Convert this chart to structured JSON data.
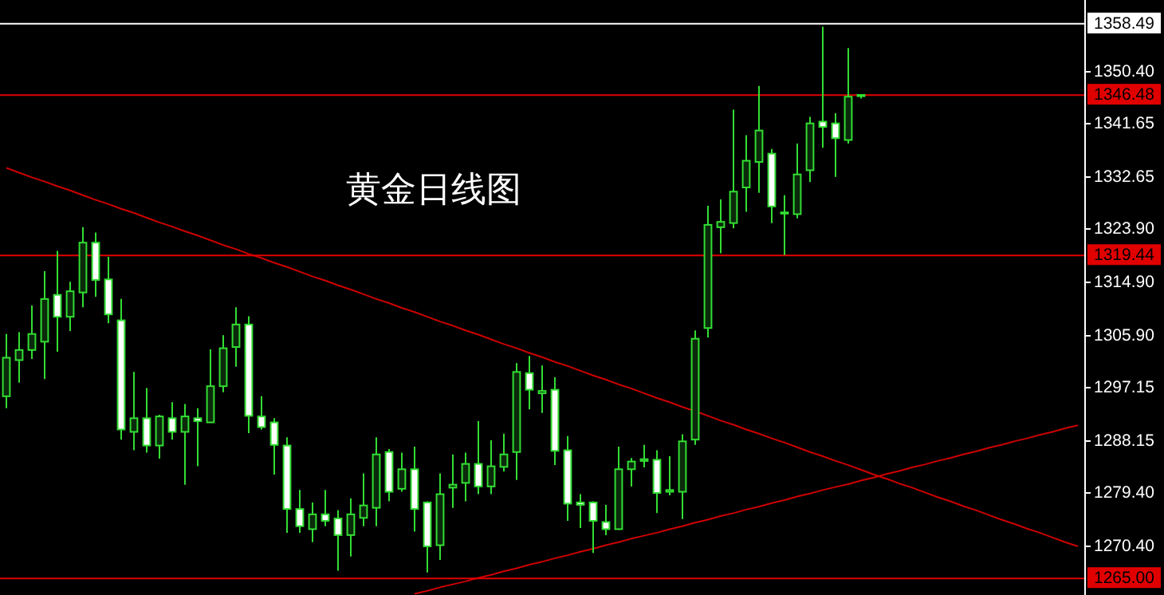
{
  "chart_data": {
    "type": "candlestick",
    "title": "黄金日线图",
    "color": "#33dd33",
    "categories": [
      null,
      null,
      null,
      null,
      null,
      null,
      null,
      null,
      null,
      null,
      null,
      null,
      null,
      null,
      null,
      null,
      null,
      null,
      null,
      null,
      null,
      null,
      null,
      null,
      null,
      null,
      null,
      null,
      null,
      null,
      null,
      null,
      null,
      null,
      null,
      null,
      null,
      null,
      null,
      null,
      null,
      null,
      null,
      null,
      null,
      null,
      null,
      null,
      null,
      null,
      null,
      null,
      null,
      null,
      null,
      null,
      null,
      null,
      null,
      null,
      null,
      null,
      null,
      null,
      null,
      null,
      null,
      null,
      null,
      null,
      null,
      null,
      null,
      null,
      null,
      null,
      null,
      null,
      null,
      null,
      null,
      null,
      null,
      null,
      null
    ],
    "ohlc": [
      [
        1295.7,
        1306.2,
        1293.7,
        1302.2
      ],
      [
        1301.8,
        1306.5,
        1298.0,
        1303.5
      ],
      [
        1303.5,
        1311.0,
        1302.0,
        1306.2
      ],
      [
        1304.9,
        1316.8,
        1298.6,
        1312.1
      ],
      [
        1312.8,
        1320.2,
        1303.2,
        1309.1
      ],
      [
        1309.1,
        1315.0,
        1306.7,
        1313.4
      ],
      [
        1313.2,
        1324.2,
        1310.7,
        1321.6
      ],
      [
        1321.6,
        1323.3,
        1312.5,
        1315.3
      ],
      [
        1315.4,
        1319.2,
        1308.0,
        1309.5
      ],
      [
        1308.5,
        1312.1,
        1288.4,
        1290.1
      ],
      [
        1289.7,
        1299.8,
        1286.6,
        1292.0
      ],
      [
        1292.0,
        1297.1,
        1286.2,
        1287.4
      ],
      [
        1287.4,
        1292.6,
        1285.2,
        1292.3
      ],
      [
        1292.0,
        1294.7,
        1288.4,
        1289.7
      ],
      [
        1289.7,
        1294.4,
        1280.8,
        1292.3
      ],
      [
        1292.0,
        1293.7,
        1283.9,
        1291.5
      ],
      [
        1291.3,
        1303.6,
        1291.3,
        1297.4
      ],
      [
        1297.4,
        1306.0,
        1296.4,
        1303.8
      ],
      [
        1304.0,
        1310.7,
        1300.7,
        1307.8
      ],
      [
        1307.8,
        1309.2,
        1289.5,
        1292.4
      ],
      [
        1292.3,
        1295.7,
        1290.1,
        1290.5
      ],
      [
        1291.3,
        1292.0,
        1282.5,
        1287.5
      ],
      [
        1287.4,
        1288.8,
        1272.7,
        1276.7
      ],
      [
        1276.7,
        1279.9,
        1272.7,
        1273.8
      ],
      [
        1273.3,
        1277.8,
        1271.1,
        1275.8
      ],
      [
        1275.8,
        1279.9,
        1273.8,
        1274.7
      ],
      [
        1275.1,
        1276.5,
        1266.3,
        1272.3
      ],
      [
        1272.3,
        1278.5,
        1268.7,
        1275.8
      ],
      [
        1275.2,
        1282.7,
        1273.8,
        1277.3
      ],
      [
        1276.9,
        1288.8,
        1273.8,
        1285.9
      ],
      [
        1286.3,
        1286.8,
        1278.0,
        1279.6
      ],
      [
        1280.1,
        1286.2,
        1279.6,
        1283.4
      ],
      [
        1283.4,
        1287.2,
        1272.9,
        1276.7
      ],
      [
        1277.8,
        1278.0,
        1266.0,
        1270.4
      ],
      [
        1270.6,
        1282.7,
        1268.1,
        1279.2
      ],
      [
        1280.3,
        1285.9,
        1276.9,
        1280.8
      ],
      [
        1281.1,
        1286.2,
        1278.0,
        1284.3
      ],
      [
        1284.3,
        1291.5,
        1279.2,
        1280.5
      ],
      [
        1280.5,
        1288.3,
        1279.2,
        1283.9
      ],
      [
        1283.8,
        1289.4,
        1283.0,
        1285.9
      ],
      [
        1286.3,
        1301.3,
        1281.6,
        1299.8
      ],
      [
        1299.6,
        1302.5,
        1293.5,
        1296.8
      ],
      [
        1296.2,
        1300.9,
        1292.9,
        1296.6
      ],
      [
        1296.8,
        1298.9,
        1284.1,
        1286.5
      ],
      [
        1286.6,
        1289.0,
        1274.7,
        1277.6
      ],
      [
        1277.8,
        1279.2,
        1273.5,
        1277.4
      ],
      [
        1277.8,
        1278.0,
        1269.3,
        1274.7
      ],
      [
        1274.5,
        1277.4,
        1272.3,
        1273.3
      ],
      [
        1273.3,
        1287.2,
        1273.2,
        1283.4
      ],
      [
        1283.4,
        1285.3,
        1280.5,
        1284.7
      ],
      [
        1284.8,
        1287.5,
        1283.7,
        1285.1
      ],
      [
        1285.0,
        1286.6,
        1276.0,
        1279.4
      ],
      [
        1279.6,
        1285.6,
        1279.0,
        1279.9
      ],
      [
        1279.6,
        1289.3,
        1275.0,
        1288.1
      ],
      [
        1288.4,
        1306.8,
        1287.5,
        1305.4
      ],
      [
        1307.2,
        1327.8,
        1305.6,
        1324.6
      ],
      [
        1324.2,
        1328.9,
        1319.8,
        1325.1
      ],
      [
        1324.9,
        1344.0,
        1324.0,
        1330.2
      ],
      [
        1330.9,
        1339.7,
        1326.8,
        1335.4
      ],
      [
        1335.2,
        1348.0,
        1330.0,
        1340.5
      ],
      [
        1336.6,
        1337.4,
        1324.9,
        1327.7
      ],
      [
        1326.5,
        1329.6,
        1319.5,
        1326.7
      ],
      [
        1326.4,
        1338.3,
        1325.7,
        1333.1
      ],
      [
        1333.8,
        1342.8,
        1331.8,
        1341.7
      ],
      [
        1342.0,
        1358.0,
        1337.6,
        1341.1
      ],
      [
        1341.7,
        1343.4,
        1332.7,
        1339.2
      ],
      [
        1338.9,
        1354.4,
        1338.3,
        1346.2
      ],
      [
        1346.5,
        1346.6,
        1345.9,
        1346.5
      ],
      null,
      null,
      null,
      null,
      null,
      null,
      null,
      null,
      null,
      null,
      null,
      null,
      null,
      null,
      null,
      null,
      null
    ],
    "series": [
      {
        "type": "line",
        "color": "#cc0000",
        "values": [
          1334.2,
          1333.4,
          1332.6,
          1331.9,
          1331.1,
          1330.4,
          1329.6,
          1328.8,
          1328.1,
          1327.3,
          1326.6,
          1325.8,
          1325.0,
          1324.3,
          1323.5,
          1322.8,
          1322.0,
          1321.2,
          1320.5,
          1319.7,
          1319.0,
          1318.2,
          1317.5,
          1316.7,
          1315.9,
          1315.2,
          1314.4,
          1313.7,
          1312.9,
          1312.1,
          1311.4,
          1310.6,
          1309.9,
          1309.1,
          1308.3,
          1307.6,
          1306.8,
          1306.1,
          1305.3,
          1304.5,
          1303.8,
          1303.0,
          1302.3,
          1301.5,
          1300.8,
          1300.0,
          1299.2,
          1298.5,
          1297.7,
          1297.0,
          1296.2,
          1295.4,
          1294.7,
          1293.9,
          1293.2,
          1292.4,
          1291.6,
          1290.9,
          1290.1,
          1289.4,
          1288.6,
          1287.9,
          1287.1,
          1286.3,
          1285.6,
          1284.8,
          1284.1,
          1283.3,
          1282.5,
          1281.8,
          1281.0,
          1280.3,
          1279.5,
          1278.7,
          1278.0,
          1277.2,
          1276.5,
          1275.7,
          1274.9,
          1274.2,
          1273.4,
          1272.7,
          1271.9,
          1271.1,
          1270.4
        ]
      },
      {
        "type": "line",
        "color": "#cc0000",
        "values": [
          null,
          null,
          null,
          null,
          null,
          null,
          null,
          null,
          null,
          null,
          null,
          null,
          null,
          null,
          null,
          null,
          null,
          null,
          null,
          null,
          null,
          null,
          null,
          null,
          null,
          null,
          null,
          null,
          null,
          null,
          null,
          null,
          1262.4,
          1262.9,
          1263.5,
          1264.0,
          1264.5,
          1265.1,
          1265.6,
          1266.2,
          1266.7,
          1267.3,
          1267.8,
          1268.4,
          1268.9,
          1269.5,
          1270.0,
          1270.6,
          1271.1,
          1271.7,
          1272.2,
          1272.7,
          1273.3,
          1273.8,
          1274.4,
          1274.9,
          1275.5,
          1276.0,
          1276.6,
          1277.1,
          1277.7,
          1278.2,
          1278.8,
          1279.3,
          1279.9,
          1280.4,
          1280.9,
          1281.5,
          1282.0,
          1282.6,
          1283.1,
          1283.7,
          1284.2,
          1284.8,
          1285.3,
          1285.9,
          1286.4,
          1287.0,
          1287.5,
          1288.1,
          1288.6,
          1289.2,
          1289.7,
          1290.3,
          1290.8
        ]
      }
    ],
    "ylim": [
      1262.2,
      1362.5
    ],
    "yticks": [
      {
        "value": 1350.4,
        "label": "1350.40"
      },
      {
        "value": 1341.65,
        "label": "1341.65"
      },
      {
        "value": 1332.65,
        "label": "1332.65"
      },
      {
        "value": 1323.9,
        "label": "1323.90"
      },
      {
        "value": 1314.9,
        "label": "1314.90"
      },
      {
        "value": 1305.9,
        "label": "1305.90"
      },
      {
        "value": 1297.15,
        "label": "1297.15"
      },
      {
        "value": 1288.15,
        "label": "1288.15"
      },
      {
        "value": 1279.4,
        "label": "1279.40"
      },
      {
        "value": 1270.4,
        "label": "1270.40"
      }
    ],
    "tick_labels": "y",
    "ref_lines": [
      {
        "axis": "y",
        "value": 1358.49,
        "label": "1358.49",
        "color": "#ffffff",
        "line_style": "solid"
      },
      {
        "axis": "y",
        "value": 1346.48,
        "label": "1346.48",
        "color": "#e00000",
        "line_style": "solid"
      },
      {
        "axis": "y",
        "value": 1319.44,
        "label": "1319.44",
        "color": "#e00000",
        "line_style": "solid"
      },
      {
        "axis": "y",
        "value": 1265.0,
        "label": "1265.00",
        "color": "#e00000",
        "line_style": "solid"
      }
    ]
  }
}
